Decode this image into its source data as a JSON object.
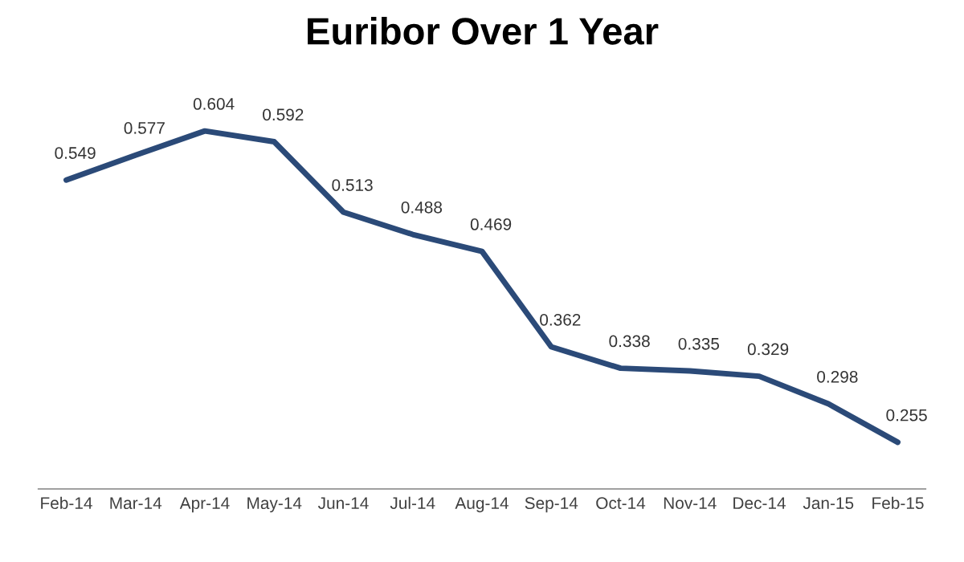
{
  "chart_data": {
    "type": "line",
    "title": "Euribor Over 1 Year",
    "categories": [
      "Feb-14",
      "Mar-14",
      "Apr-14",
      "May-14",
      "Jun-14",
      "Jul-14",
      "Aug-14",
      "Sep-14",
      "Oct-14",
      "Nov-14",
      "Dec-14",
      "Jan-15",
      "Feb-15"
    ],
    "series": [
      {
        "color": "#2b4a78",
        "values": [
          0.549,
          0.577,
          0.604,
          0.592,
          0.513,
          0.488,
          0.469,
          0.362,
          0.338,
          0.335,
          0.329,
          0.298,
          0.255
        ]
      }
    ],
    "data_labels": true,
    "tick_labels": "x",
    "grid": false,
    "marker": "none",
    "line_style": "solid"
  }
}
